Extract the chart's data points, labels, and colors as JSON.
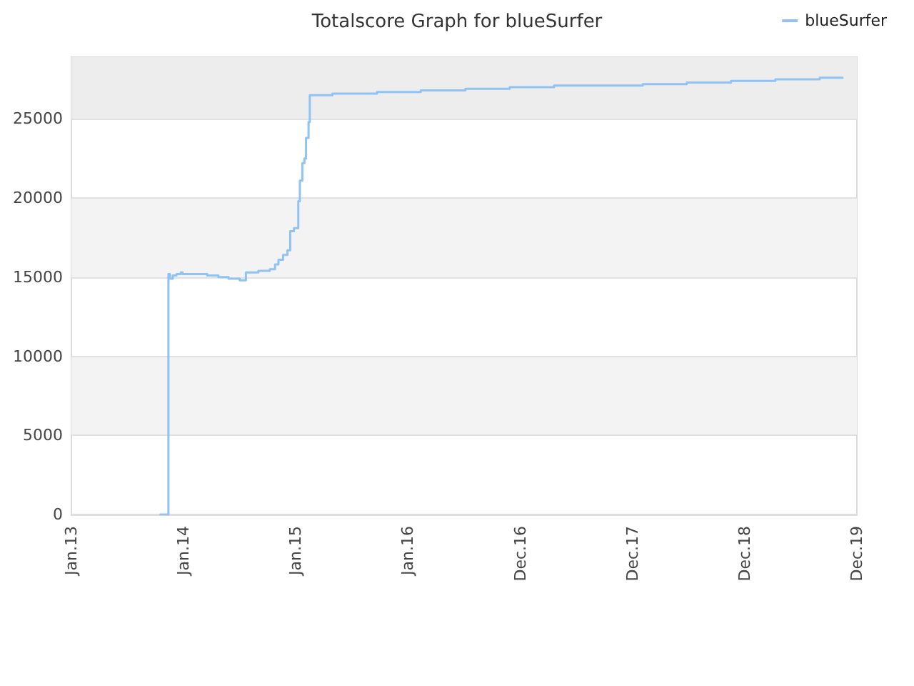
{
  "chart_data": {
    "type": "step",
    "title": "Totalscore Graph for blueSurfer",
    "x": [
      "2013-10-24",
      "2013-11-19",
      "2013-11-24",
      "2013-12-03",
      "2013-12-15",
      "2013-12-29",
      "2014-01-04",
      "2014-03-24",
      "2014-04-29",
      "2014-06-01",
      "2014-07-07",
      "2014-07-27",
      "2014-09-05",
      "2014-10-12",
      "2014-10-29",
      "2014-11-09",
      "2014-11-24",
      "2014-12-08",
      "2014-12-17",
      "2014-12-29",
      "2015-01-12",
      "2015-01-17",
      "2015-01-25",
      "2015-02-01",
      "2015-02-06",
      "2015-02-14",
      "2015-02-18",
      "2015-05-02",
      "2015-09-23",
      "2016-02-11",
      "2016-07-04",
      "2016-11-24",
      "2017-04-16",
      "2018-01-27",
      "2018-06-18",
      "2018-11-08",
      "2019-03-31",
      "2019-08-21",
      "2019-11-03"
    ],
    "series": [
      {
        "name": "blueSurfer",
        "color": "#90c3f3",
        "values": [
          0,
          15200,
          14900,
          15100,
          15200,
          15300,
          15200,
          15100,
          15000,
          14900,
          14800,
          15300,
          15400,
          15500,
          15800,
          16100,
          16400,
          16700,
          17900,
          18100,
          19800,
          21100,
          22200,
          22500,
          23800,
          24800,
          26500,
          26600,
          26700,
          26800,
          26900,
          27000,
          27100,
          27200,
          27300,
          27400,
          27500,
          27600,
          27600
        ]
      }
    ],
    "xlim": [
      "2013-01-10",
      "2019-12-19"
    ],
    "xticks": [
      {
        "value": "2013-01-10",
        "label": "Jan.13"
      },
      {
        "value": "2014-01-07",
        "label": "Jan.14"
      },
      {
        "value": "2015-01-04",
        "label": "Jan.15"
      },
      {
        "value": "2016-01-01",
        "label": "Jan.16"
      },
      {
        "value": "2016-12-28",
        "label": "Dec.16"
      },
      {
        "value": "2017-12-25",
        "label": "Dec.17"
      },
      {
        "value": "2018-12-22",
        "label": "Dec.18"
      },
      {
        "value": "2019-12-19",
        "label": "Dec.19"
      }
    ],
    "ylim": [
      0,
      28900
    ],
    "yticks": [
      0,
      5000,
      10000,
      15000,
      20000,
      25000
    ],
    "bands": [
      {
        "axis": "y",
        "from": 5000,
        "to": 10000,
        "color": "#f3f3f3"
      },
      {
        "axis": "y",
        "from": 15000,
        "to": 20000,
        "color": "#f3f3f3"
      },
      {
        "axis": "y",
        "from": 25000,
        "to": 28900,
        "color": "#ededed"
      }
    ],
    "grid": "y",
    "legend": "top right"
  }
}
